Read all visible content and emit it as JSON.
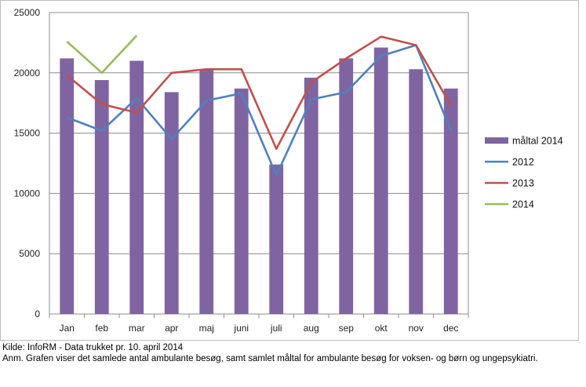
{
  "chart_data": {
    "type": "bar",
    "categories": [
      "Jan",
      "feb",
      "mar",
      "apr",
      "maj",
      "juni",
      "juli",
      "aug",
      "sep",
      "okt",
      "nov",
      "dec"
    ],
    "ylim": [
      0,
      25000
    ],
    "yticks": [
      "0",
      "5000",
      "10000",
      "15000",
      "20000",
      "25000"
    ],
    "ytick_values": [
      0,
      5000,
      10000,
      15000,
      20000,
      25000
    ],
    "grid": true,
    "legend_position": "right",
    "series": [
      {
        "name": "måltal 2014",
        "kind": "bar",
        "color": "#8064a2",
        "values": [
          21200,
          19400,
          21000,
          18400,
          20300,
          18700,
          12400,
          19600,
          21200,
          22100,
          20300,
          18700
        ]
      },
      {
        "name": "2012",
        "kind": "line",
        "color": "#4f81bd",
        "values": [
          16300,
          15200,
          17900,
          14500,
          17700,
          18300,
          11500,
          17800,
          18400,
          21400,
          22300,
          15200
        ]
      },
      {
        "name": "2013",
        "kind": "line",
        "color": "#c0504d",
        "values": [
          19800,
          17400,
          16700,
          20000,
          20300,
          20300,
          13700,
          19200,
          21200,
          23000,
          22300,
          17300
        ]
      },
      {
        "name": "2014",
        "kind": "line",
        "color": "#9bbb59",
        "values": [
          22600,
          20000,
          23100,
          null,
          null,
          null,
          null,
          null,
          null,
          null,
          null,
          null
        ]
      }
    ]
  },
  "notes": {
    "source": "Kilde: InfoRM - Data trukket pr. 10. april 2014",
    "remark": "Anm. Grafen viser det samlede antal ambulante besøg, samt samlet måltal for ambulante besøg for voksen- og børn og ungepsykiatri."
  }
}
